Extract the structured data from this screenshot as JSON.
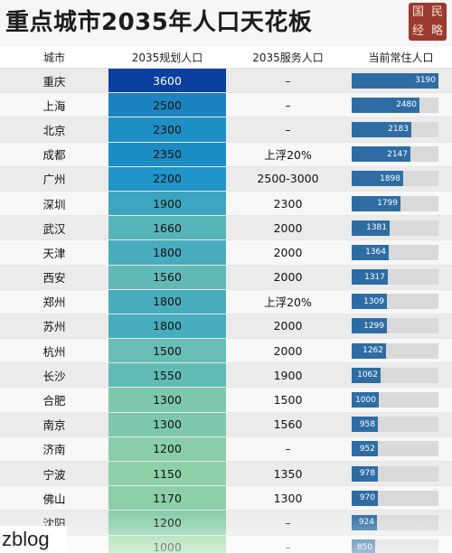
{
  "title": "重点城市2035年人口天花板",
  "seal": [
    "国",
    "民",
    "经",
    "略"
  ],
  "headers": {
    "city": "城市",
    "plan": "2035规划人口",
    "service": "2035服务人口",
    "current": "当前常住人口"
  },
  "footer_brand": "zblog",
  "colors": {
    "plan_high": "#0b3fa0",
    "plan_mid": "#1f97c9",
    "plan_low": "#9ed9a4",
    "current_bar": "#2e6da4",
    "current_track": "#d9d9d9"
  },
  "chart_data": {
    "type": "table",
    "columns": [
      "城市",
      "2035规划人口",
      "2035服务人口",
      "当前常住人口"
    ],
    "rows": [
      {
        "city": "重庆",
        "plan": 3600,
        "service": "–",
        "current": 3190
      },
      {
        "city": "上海",
        "plan": 2500,
        "service": "–",
        "current": 2480
      },
      {
        "city": "北京",
        "plan": 2300,
        "service": "–",
        "current": 2183
      },
      {
        "city": "成都",
        "plan": 2350,
        "service": "上浮20%",
        "current": 2147
      },
      {
        "city": "广州",
        "plan": 2200,
        "service": "2500-3000",
        "current": 1898
      },
      {
        "city": "深圳",
        "plan": 1900,
        "service": "2300",
        "current": 1799
      },
      {
        "city": "武汉",
        "plan": 1660,
        "service": "2000",
        "current": 1381
      },
      {
        "city": "天津",
        "plan": 1800,
        "service": "2000",
        "current": 1364
      },
      {
        "city": "西安",
        "plan": 1560,
        "service": "2000",
        "current": 1317
      },
      {
        "city": "郑州",
        "plan": 1800,
        "service": "上浮20%",
        "current": 1309
      },
      {
        "city": "苏州",
        "plan": 1800,
        "service": "2000",
        "current": 1299
      },
      {
        "city": "杭州",
        "plan": 1500,
        "service": "2000",
        "current": 1262
      },
      {
        "city": "长沙",
        "plan": 1550,
        "service": "1900",
        "current": 1062
      },
      {
        "city": "合肥",
        "plan": 1300,
        "service": "1500",
        "current": 1000
      },
      {
        "city": "南京",
        "plan": 1300,
        "service": "1560",
        "current": 958
      },
      {
        "city": "济南",
        "plan": 1200,
        "service": "–",
        "current": 952
      },
      {
        "city": "宁波",
        "plan": 1150,
        "service": "1350",
        "current": 978
      },
      {
        "city": "佛山",
        "plan": 1170,
        "service": "1300",
        "current": 970
      },
      {
        "city": "沈阳",
        "plan": 1200,
        "service": "–",
        "current": 924
      },
      {
        "city": "",
        "plan": 1000,
        "service": "–",
        "current": 850
      }
    ],
    "current_scale_max": 3190
  }
}
